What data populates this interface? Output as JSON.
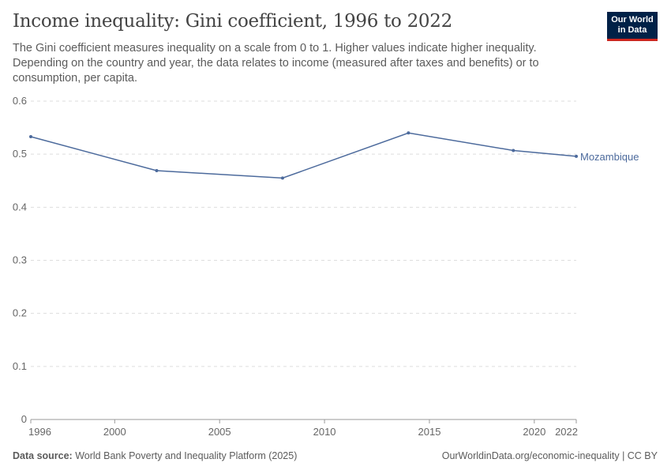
{
  "header": {
    "title": "Income inequality: Gini coefficient, 1996 to 2022",
    "subtitle": "The Gini coefficient measures inequality on a scale from 0 to 1. Higher values indicate higher inequality. Depending on the country and year, the data relates to income (measured after taxes and benefits) or to consumption, per capita.",
    "logo": "Our World in Data"
  },
  "footer": {
    "source_label": "Data source:",
    "source": "World Bank Poverty and Inequality Platform (2025)",
    "right": "OurWorldinData.org/economic-inequality | CC BY"
  },
  "chart_data": {
    "type": "line",
    "title": "Income inequality: Gini coefficient, 1996 to 2022",
    "xlim": [
      1996,
      2022
    ],
    "ylim": [
      0,
      0.6
    ],
    "x_ticks": [
      1996,
      2000,
      2005,
      2010,
      2015,
      2020,
      2022
    ],
    "y_ticks": [
      0,
      0.1,
      0.2,
      0.3,
      0.4,
      0.5,
      0.6
    ],
    "grid": "horizontal dashed",
    "legend": "end-of-line label",
    "series": [
      {
        "name": "Mozambique",
        "color": "#4c6a9c",
        "x": [
          1996,
          2002,
          2008,
          2014,
          2019,
          2022
        ],
        "y": [
          0.533,
          0.469,
          0.455,
          0.54,
          0.507,
          0.496
        ]
      }
    ]
  }
}
